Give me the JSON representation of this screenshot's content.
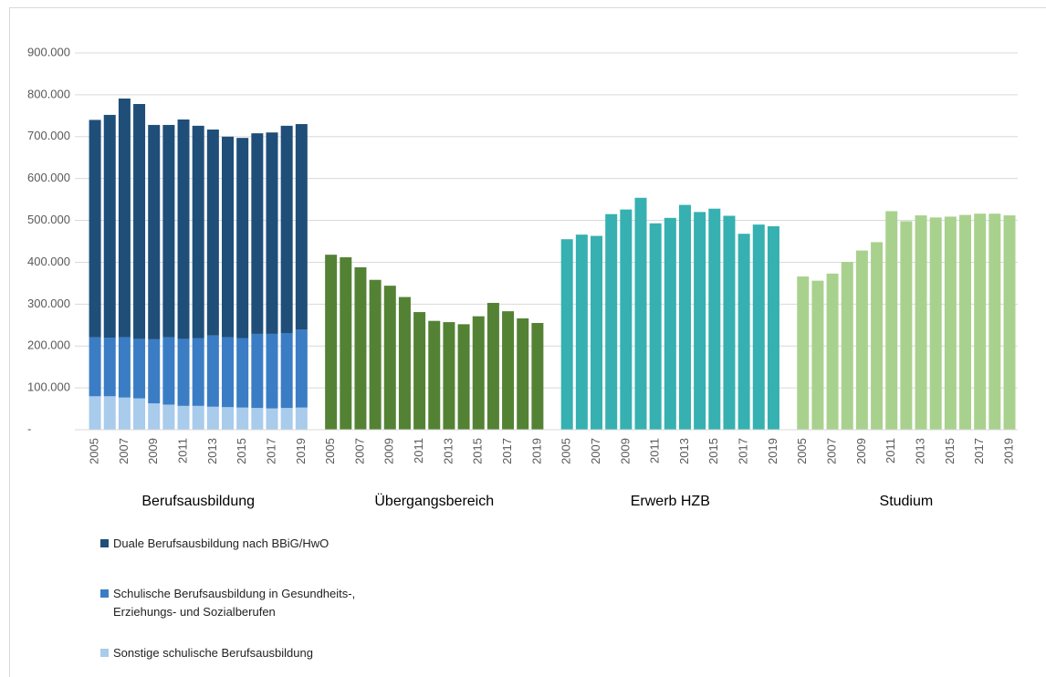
{
  "chart_data": {
    "type": "bar",
    "ylim": [
      0,
      900000
    ],
    "yticks": [
      {
        "value": 0,
        "label": "-"
      },
      {
        "value": 100000,
        "label": "100.000"
      },
      {
        "value": 200000,
        "label": "200.000"
      },
      {
        "value": 300000,
        "label": "300.000"
      },
      {
        "value": 400000,
        "label": "400.000"
      },
      {
        "value": 500000,
        "label": "500.000"
      },
      {
        "value": 600000,
        "label": "600.000"
      },
      {
        "value": 700000,
        "label": "700.000"
      },
      {
        "value": 800000,
        "label": "800.000"
      },
      {
        "value": 900000,
        "label": "900.000"
      }
    ],
    "grid": true,
    "stacked": true,
    "groups": [
      {
        "label": "Berufsausbildung",
        "categories": [
          "2005",
          null,
          "2007",
          null,
          "2009",
          null,
          "2011",
          null,
          "2013",
          null,
          "2015",
          null,
          "2017",
          null,
          "2019"
        ],
        "series": [
          {
            "name": "Sonstige schulische Berufsausbildung",
            "color": "#a9cbec",
            "values": [
              80000,
              80000,
              77000,
              75000,
              63000,
              60000,
              57000,
              57000,
              55000,
              54000,
              53000,
              52000,
              51000,
              52000,
              53000
            ]
          },
          {
            "name": "Schulische Berufsausbildung in Gesundheits-, Erziehungs- und Sozialberufen",
            "color": "#3a7dc4",
            "values": [
              141000,
              140000,
              144000,
              142000,
              153000,
              161000,
              160000,
              162000,
              170000,
              167000,
              166000,
              177000,
              178000,
              179000,
              186000
            ]
          },
          {
            "name": "Duale Berufsausbildung nach BBiG/HwO",
            "color": "#1f4e79",
            "values": [
              519000,
              532000,
              570000,
              561000,
              512000,
              507000,
              524000,
              507000,
              492000,
              479000,
              478000,
              479000,
              481000,
              495000,
              491000
            ]
          }
        ]
      },
      {
        "label": "Übergangsbereich",
        "categories": [
          "2005",
          null,
          "2007",
          null,
          "2009",
          null,
          "2011",
          null,
          "2013",
          null,
          "2015",
          null,
          "2017",
          null,
          "2019"
        ],
        "series": [
          {
            "color": "#548235",
            "values": [
              418000,
              412000,
              388000,
              358000,
              344000,
              317000,
              281000,
              260000,
              257000,
              252000,
              271000,
              303000,
              283000,
              266000,
              255000
            ]
          }
        ]
      },
      {
        "label": "Erwerb HZB",
        "categories": [
          "2005",
          null,
          "2007",
          null,
          "2009",
          null,
          "2011",
          null,
          "2013",
          null,
          "2015",
          null,
          "2017",
          null,
          "2019"
        ],
        "series": [
          {
            "color": "#36b0b0",
            "values": [
              455000,
              466000,
              463000,
              515000,
              526000,
              554000,
              493000,
              506000,
              537000,
              520000,
              528000,
              511000,
              468000,
              490000,
              486000
            ]
          }
        ]
      },
      {
        "label": "Studium",
        "categories": [
          "2005",
          null,
          "2007",
          null,
          "2009",
          null,
          "2011",
          null,
          "2013",
          null,
          "2015",
          null,
          "2017",
          null,
          "2019"
        ],
        "series": [
          {
            "color": "#a9d18e",
            "values": [
              366000,
              356000,
              373000,
              401000,
              428000,
              448000,
              522000,
              498000,
              512000,
              507000,
              509000,
              513000,
              516000,
              516000,
              512000
            ]
          }
        ]
      }
    ]
  }
}
